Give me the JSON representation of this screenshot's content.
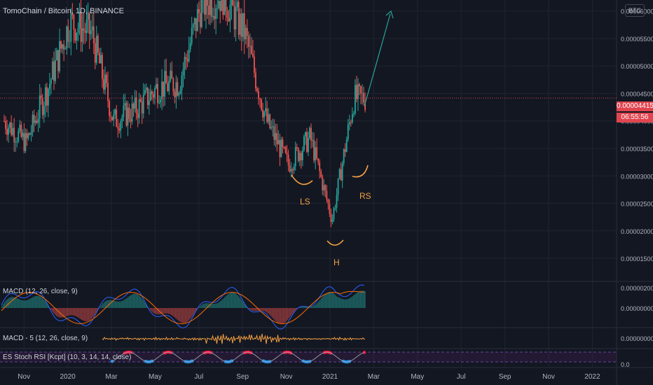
{
  "header": {
    "title": "TomoChain / Bitcoin, 1D, BINANCE",
    "currency": "BTC"
  },
  "price_tags": {
    "current": "0.00004415",
    "countdown": "06:55:56"
  },
  "indicators": {
    "macd1": "MACD (12, 26, close, 9)",
    "macd2": "MACD - 5 (12, 26, close, 9)",
    "stoch": "ES Stoch RSI [Kcpt] (10, 3, 14, 14, close)"
  },
  "annotations": {
    "ls": "LS",
    "head": "H",
    "rs": "RS"
  },
  "colors": {
    "up": "#26a69a",
    "down": "#ef5350",
    "pattern": "#f5a142",
    "arrow": "#26a69a",
    "macd_line": "#2962ff",
    "signal_line": "#ff6d00",
    "background": "#131722"
  },
  "chart_data": {
    "type": "line",
    "title": "TomoChain / Bitcoin, 1D, BINANCE",
    "x_ticks": [
      "Nov",
      "2020",
      "Mar",
      "May",
      "Jul",
      "Sep",
      "Nov",
      "2021",
      "Mar",
      "May",
      "Jul",
      "Sep",
      "Nov",
      "2022"
    ],
    "y_ticks": [
      "0.00006000",
      "0.00005500",
      "0.00005000",
      "0.00004500",
      "0.00004000",
      "0.00003500",
      "0.00003000",
      "0.00002500",
      "0.00002000",
      "0.00001500"
    ],
    "ylim": [
      1.08e-05,
      6.2e-05
    ],
    "series": [
      {
        "name": "TomoChain / Bitcoin",
        "x": [
          "2019-10",
          "2019-11",
          "2019-12",
          "2020-01",
          "2020-02",
          "2020-03",
          "2020-04",
          "2020-05",
          "2020-06",
          "2020-07",
          "2020-08",
          "2020-09",
          "2020-10",
          "2020-11",
          "2020-12",
          "2021-01",
          "2021-02"
        ],
        "y": [
          4e-05,
          3.6e-05,
          4.6e-05,
          5.8e-05,
          5.6e-05,
          4e-05,
          4.2e-05,
          4.6e-05,
          4.7e-05,
          6.1e-05,
          6.3e-05,
          5.6e-05,
          4e-05,
          3.2e-05,
          3.7e-05,
          2.2e-05,
          4.41e-05
        ]
      }
    ],
    "macd_ticks": [
      "0.00000200",
      "0.00000000"
    ],
    "macd2_ticks": [
      "0.00000000"
    ],
    "stoch_ticks": [
      "0.0"
    ]
  }
}
